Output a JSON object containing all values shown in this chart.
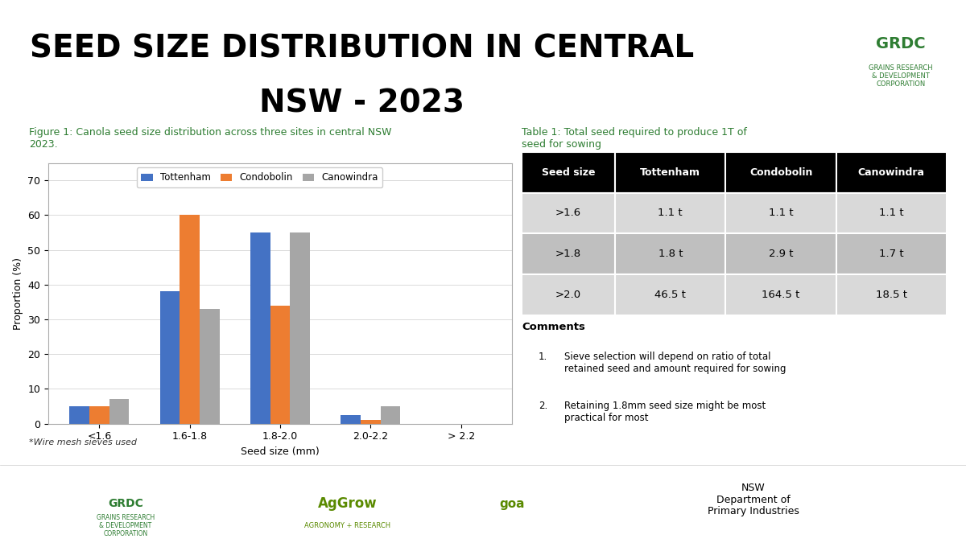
{
  "title_line1": "SEED SIZE DISTRIBUTION IN CENTRAL",
  "title_line2": "NSW - 2023",
  "fig_caption": "Figure 1: Canola seed size distribution across three sites in central NSW\n2023.",
  "table_caption": "Table 1: Total seed required to produce 1T of\nseed for sowing",
  "categories": [
    "<1.6",
    "1.6-1.8",
    "1.8-2.0",
    "2.0-2.2",
    "> 2.2"
  ],
  "series": {
    "Tottenham": [
      5,
      38,
      55,
      2.5,
      0
    ],
    "Condobolin": [
      5,
      60,
      34,
      1,
      0
    ],
    "Canowindra": [
      7,
      33,
      55,
      5,
      0
    ]
  },
  "bar_colors": {
    "Tottenham": "#4472C4",
    "Condobolin": "#ED7D31",
    "Canowindra": "#A6A6A6"
  },
  "ylabel": "Proportion (%)",
  "xlabel": "Seed size (mm)",
  "ylim": [
    0,
    75
  ],
  "yticks": [
    0,
    10,
    20,
    30,
    40,
    50,
    60,
    70
  ],
  "bg_color": "#FFFFFF",
  "chart_bg": "#FFFFFF",
  "title_color": "#000000",
  "caption_color": "#2E7D32",
  "table_headers": [
    "Seed size",
    "Tottenham",
    "Condobolin",
    "Canowindra"
  ],
  "table_rows": [
    [
      ">1.6",
      "1.1 t",
      "1.1 t",
      "1.1 t"
    ],
    [
      ">1.8",
      "1.8 t",
      "2.9 t",
      "1.7 t"
    ],
    [
      ">2.0",
      "46.5 t",
      "164.5 t",
      "18.5 t"
    ]
  ],
  "table_header_bg": "#000000",
  "table_header_fg": "#FFFFFF",
  "table_row_bg_odd": "#D9D9D9",
  "table_row_bg_even": "#BFBFBF",
  "comments_title": "Comments",
  "comments": [
    "Sieve selection will depend on ratio of total\nretained seed and amount required for sowing",
    "Retaining 1.8mm seed size might be most\npractical for most"
  ],
  "wire_note": "*Wire mesh sieves used"
}
